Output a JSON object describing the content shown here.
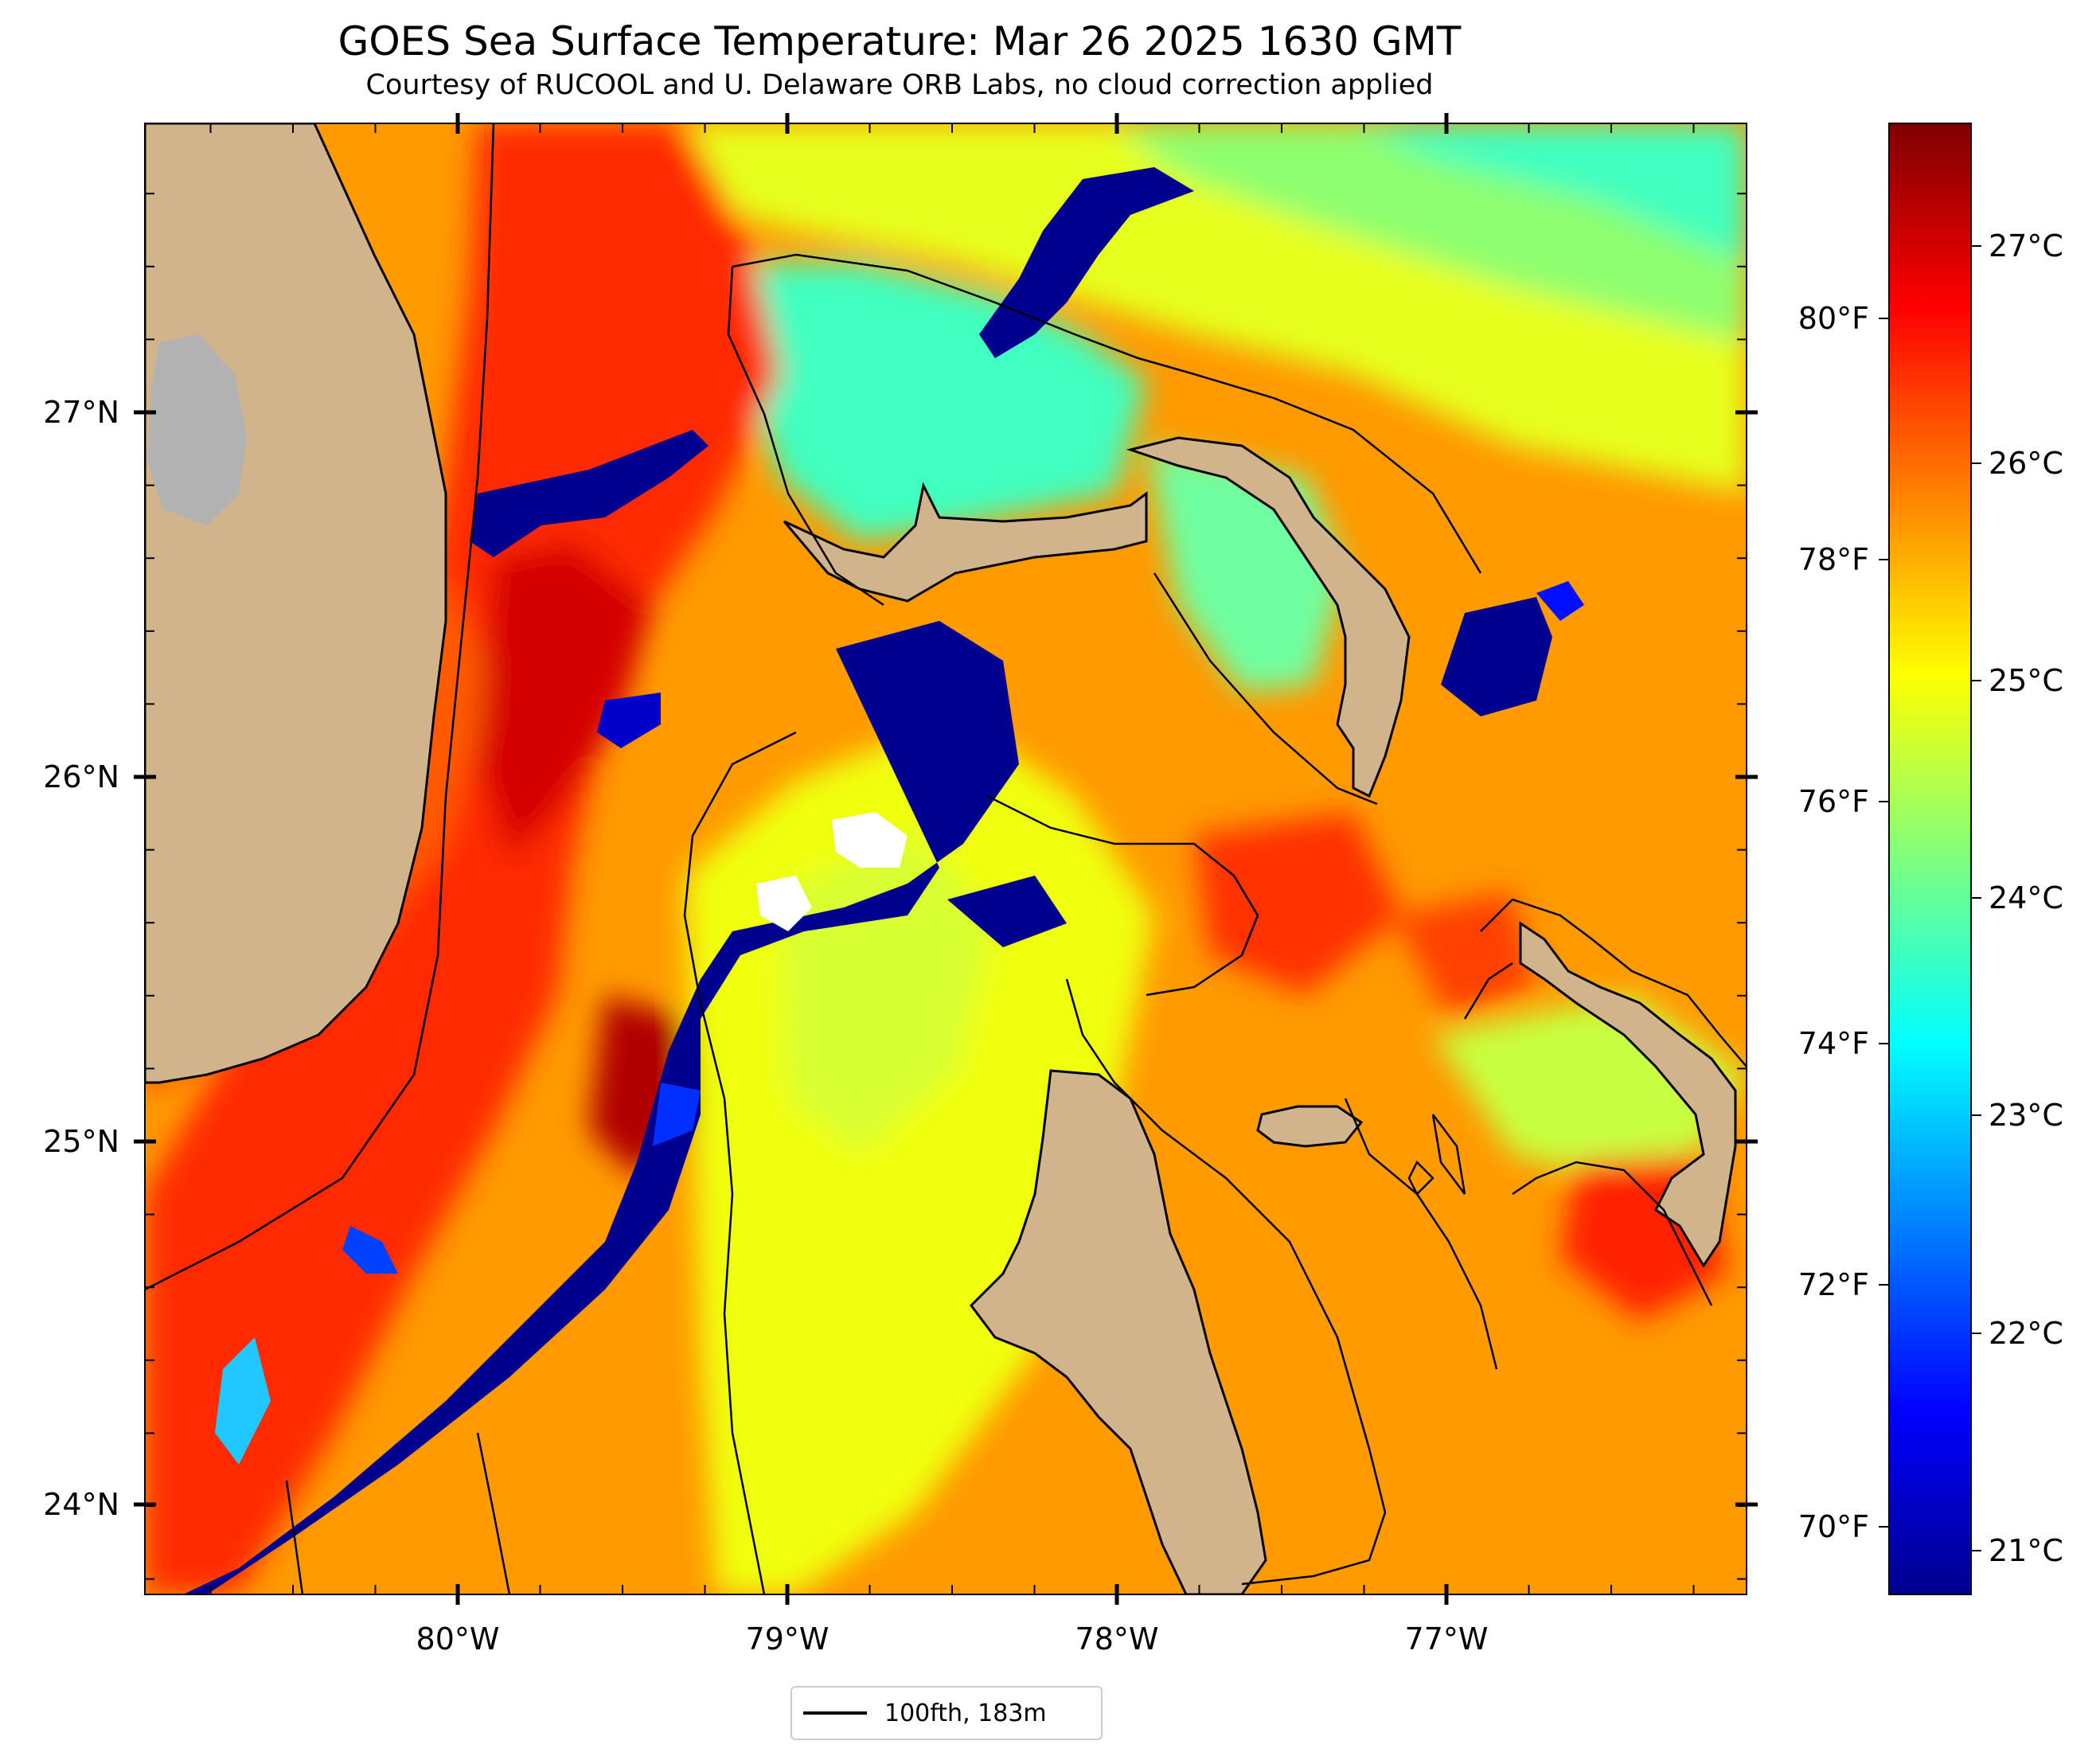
{
  "title": "GOES Sea Surface Temperature: Mar 26 2025 1630 GMT",
  "subtitle": "Courtesy of RUCOOL and U. Delaware ORB Labs, no cloud correction applied",
  "axes": {
    "lon_ticks": [
      "80°W",
      "79°W",
      "78°W",
      "77°W"
    ],
    "lat_ticks": [
      "27°N",
      "26°N",
      "25°N",
      "24°N"
    ]
  },
  "colorbar": {
    "celsius_ticks": [
      "27°C",
      "26°C",
      "25°C",
      "24°C",
      "23°C",
      "22°C",
      "21°C"
    ],
    "fahrenheit_ticks": [
      "80°F",
      "78°F",
      "76°F",
      "74°F",
      "72°F",
      "70°F"
    ],
    "colormap": "jet",
    "range_c": [
      20.8,
      27.5
    ]
  },
  "legend": {
    "label": "100fth, 183m"
  },
  "colors": {
    "land": "#d2b48c",
    "lake": "#b2b2b2",
    "cloud": "#ffffff",
    "contour": "#000000"
  }
}
